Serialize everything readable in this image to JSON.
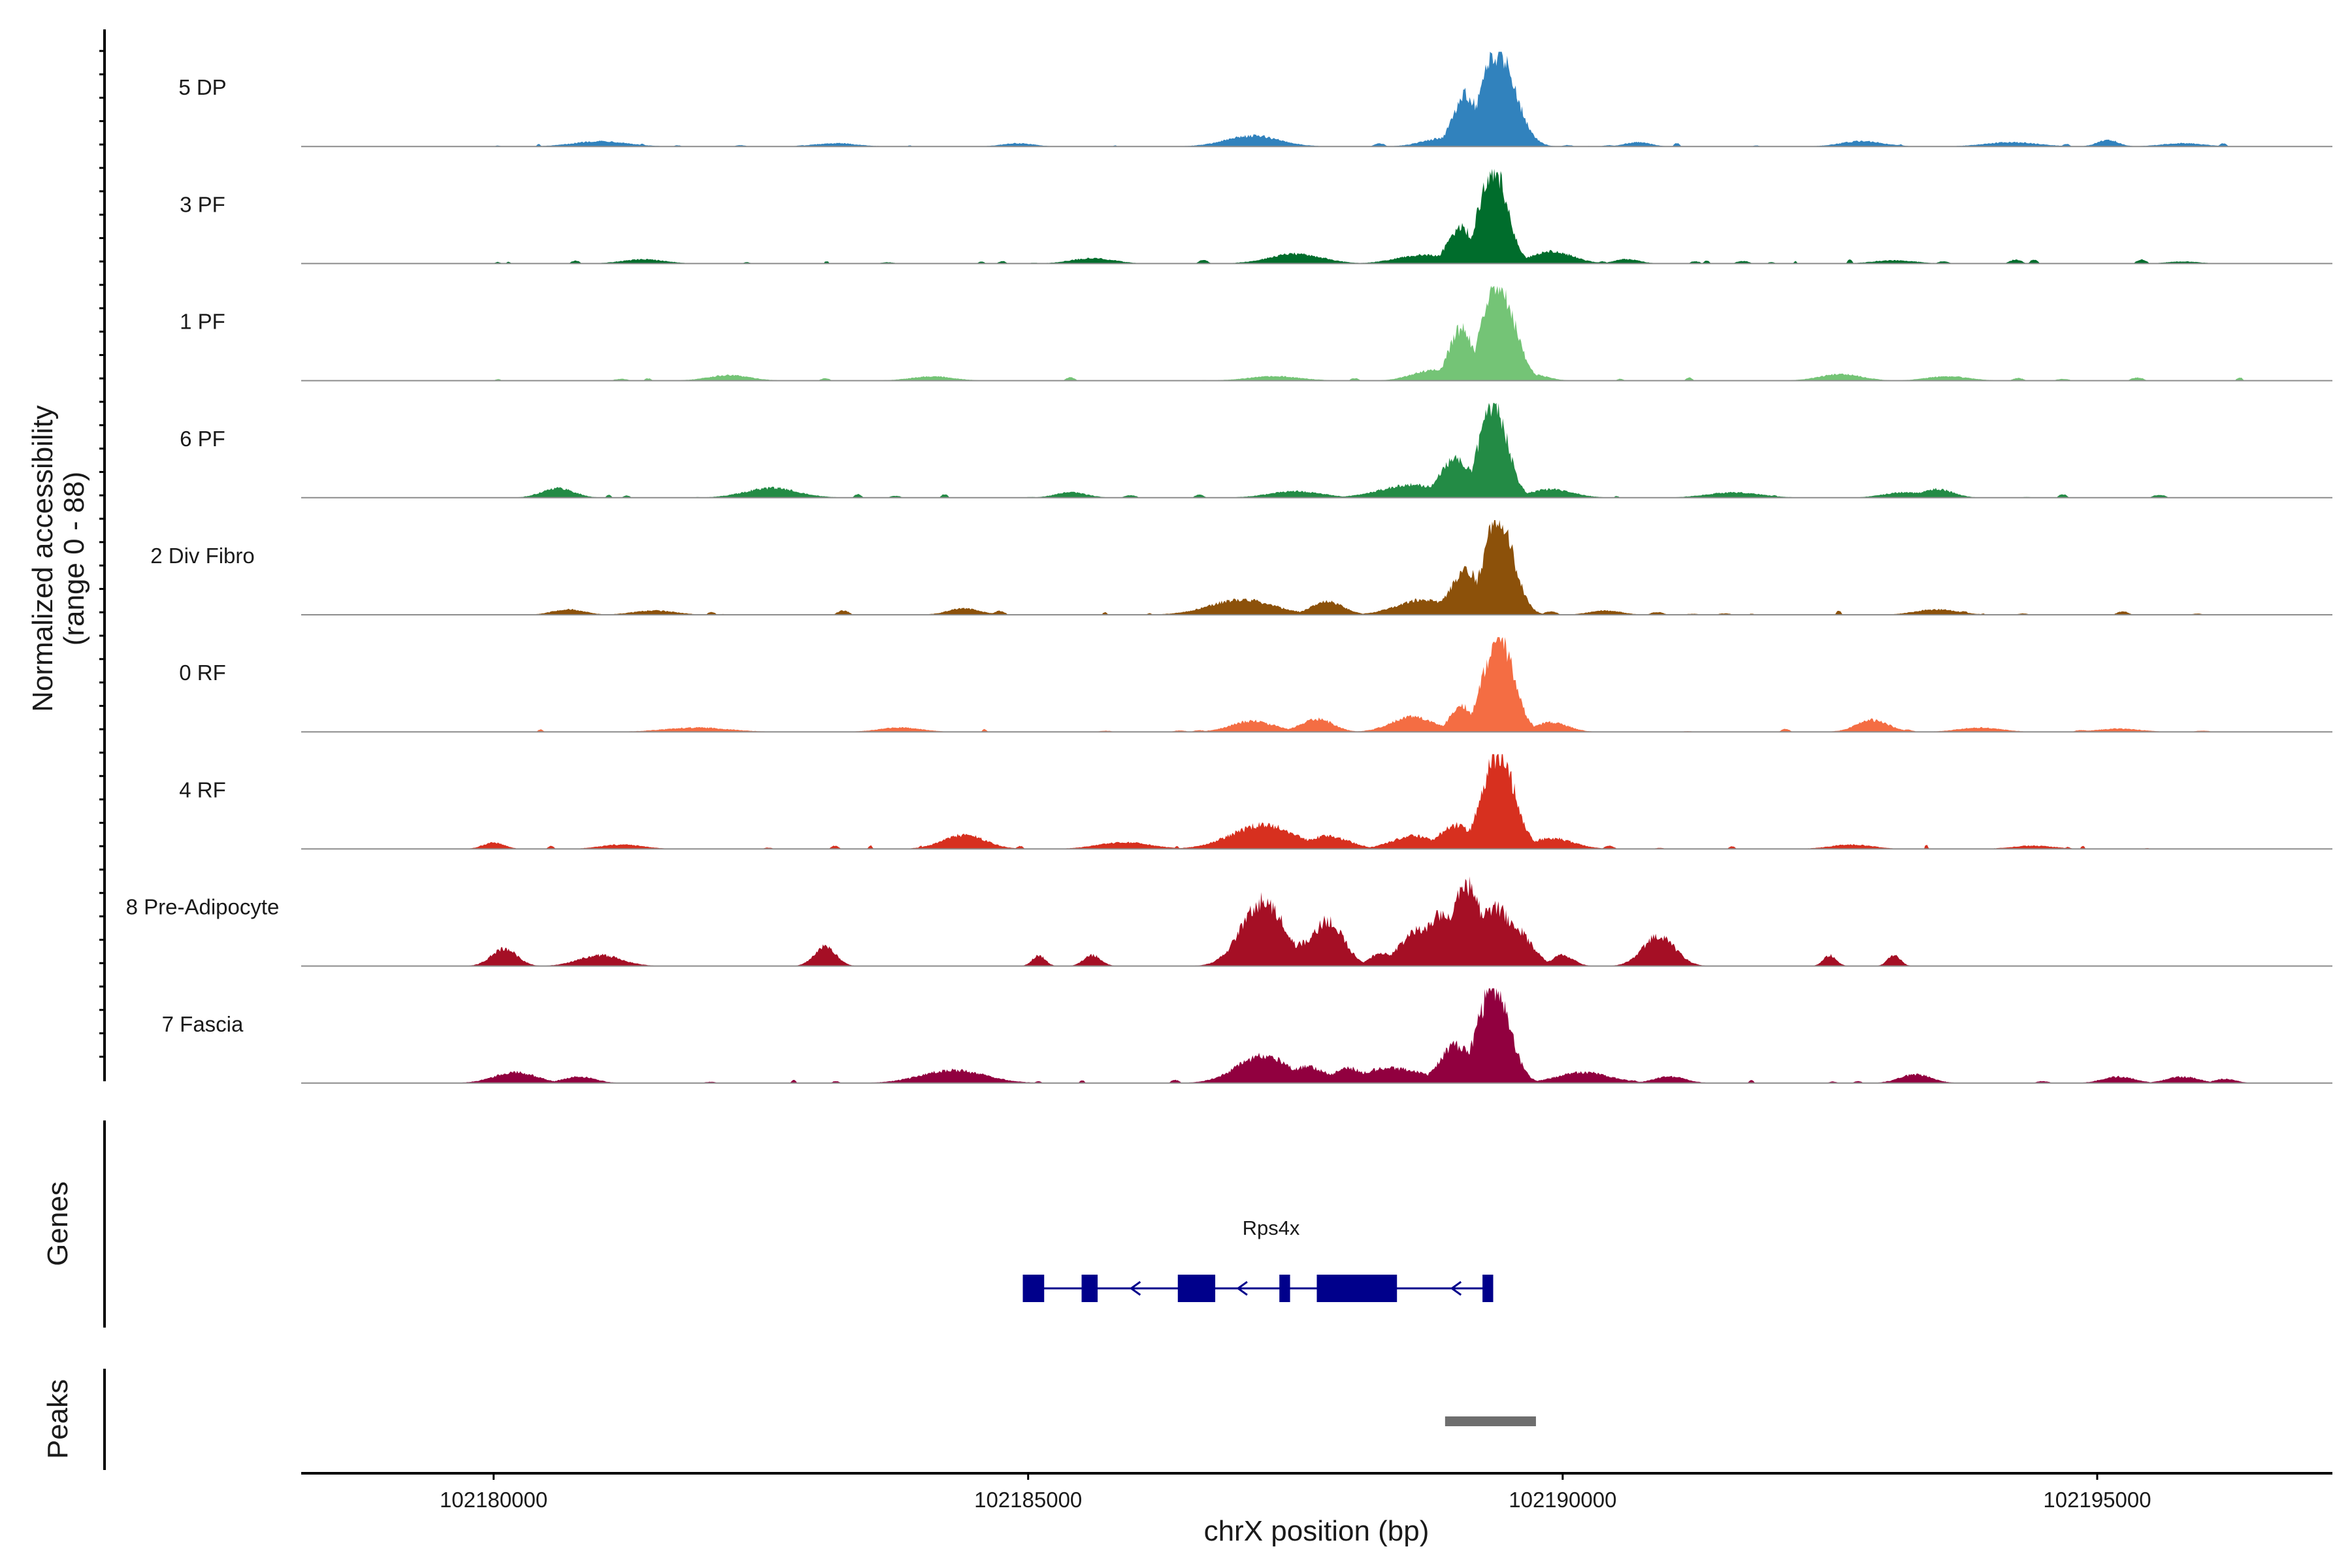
{
  "chart_data": {
    "type": "area",
    "region": {
      "chromosome": "chrX",
      "start": 102178200,
      "end": 102197200
    },
    "y_axis_title_line1": "Normalized accessibility",
    "y_axis_title_line2": "(range 0 - 88)",
    "y_range": [
      0,
      88
    ],
    "x_axis_title": "chrX position (bp)",
    "x_ticks": [
      102180000,
      102185000,
      102190000,
      102195000
    ],
    "x_tick_labels": [
      "102180000",
      "102185000",
      "102190000",
      "102195000"
    ],
    "panel_titles": {
      "genes": "Genes",
      "peaks": "Peaks"
    },
    "tracks": [
      {
        "name": "5 DP",
        "color": "#3182bd",
        "peaks": [
          [
            102189400,
            160,
            88
          ],
          [
            102189100,
            120,
            48
          ],
          [
            102188900,
            200,
            8
          ],
          [
            102187100,
            250,
            10
          ],
          [
            102184900,
            150,
            3
          ],
          [
            102183200,
            200,
            3
          ],
          [
            102181000,
            250,
            5
          ],
          [
            102180900,
            150,
            4
          ],
          [
            102192800,
            200,
            5
          ],
          [
            102194200,
            250,
            4
          ],
          [
            102195100,
            100,
            6
          ],
          [
            102195800,
            200,
            3
          ],
          [
            102190700,
            120,
            4
          ]
        ],
        "noise": {
          "from": 102180000,
          "to": 102196400,
          "max": 3,
          "seed": 11
        }
      },
      {
        "name": "3 PF",
        "color": "#006d2c",
        "peaks": [
          [
            102189350,
            130,
            88
          ],
          [
            102189050,
            120,
            33
          ],
          [
            102188700,
            250,
            8
          ],
          [
            102189900,
            200,
            11
          ],
          [
            102187500,
            250,
            9
          ],
          [
            102185600,
            200,
            5
          ],
          [
            102181400,
            200,
            4
          ],
          [
            102190600,
            120,
            4
          ],
          [
            102193100,
            200,
            3
          ],
          [
            102195800,
            150,
            2
          ]
        ],
        "noise": {
          "from": 102180000,
          "to": 102196200,
          "max": 4,
          "seed": 12
        }
      },
      {
        "name": "1 PF",
        "color": "#74c476",
        "peaks": [
          [
            102189400,
            150,
            88
          ],
          [
            102189050,
            110,
            49
          ],
          [
            102188800,
            200,
            10
          ],
          [
            102189700,
            150,
            6
          ],
          [
            102184100,
            200,
            4
          ],
          [
            102182200,
            200,
            5
          ],
          [
            102187300,
            250,
            4
          ],
          [
            102192600,
            200,
            6
          ],
          [
            102193600,
            200,
            4
          ]
        ],
        "noise": {
          "from": 102180000,
          "to": 102196400,
          "max": 3,
          "seed": 13
        }
      },
      {
        "name": "6 PF",
        "color": "#238b45",
        "peaks": [
          [
            102189350,
            130,
            88
          ],
          [
            102189000,
            150,
            36
          ],
          [
            102188600,
            300,
            12
          ],
          [
            102189900,
            200,
            8
          ],
          [
            102180600,
            150,
            9
          ],
          [
            102182600,
            250,
            9
          ],
          [
            102185400,
            150,
            5
          ],
          [
            102187500,
            250,
            6
          ],
          [
            102191600,
            250,
            5
          ],
          [
            102193200,
            200,
            5
          ],
          [
            102193500,
            150,
            8
          ]
        ],
        "noise": {
          "from": 102180600,
          "to": 102195600,
          "max": 4,
          "seed": 14
        }
      },
      {
        "name": "2 Div Fibro",
        "color": "#8c510a",
        "peaks": [
          [
            102189400,
            140,
            88
          ],
          [
            102189100,
            150,
            40
          ],
          [
            102188700,
            250,
            14
          ],
          [
            102187000,
            300,
            14
          ],
          [
            102187800,
            150,
            12
          ],
          [
            102184400,
            150,
            6
          ],
          [
            102181500,
            200,
            4
          ],
          [
            102190400,
            150,
            4
          ],
          [
            102193500,
            200,
            5
          ],
          [
            102180700,
            150,
            5
          ]
        ],
        "noise": {
          "from": 102180700,
          "to": 102196300,
          "max": 4,
          "seed": 15
        }
      },
      {
        "name": "0 RF",
        "color": "#f46d43",
        "peaks": [
          [
            102189400,
            140,
            88
          ],
          [
            102189050,
            100,
            25
          ],
          [
            102188600,
            200,
            14
          ],
          [
            102187100,
            200,
            10
          ],
          [
            102187700,
            150,
            12
          ],
          [
            102189900,
            150,
            9
          ],
          [
            102192900,
            150,
            11
          ],
          [
            102181900,
            300,
            4
          ],
          [
            102183800,
            200,
            4
          ],
          [
            102193900,
            200,
            4
          ],
          [
            102195200,
            200,
            3
          ]
        ],
        "noise": {
          "from": 102180400,
          "to": 102196300,
          "max": 3,
          "seed": 16
        }
      },
      {
        "name": "4 RF",
        "color": "#d7301f",
        "peaks": [
          [
            102189400,
            150,
            88
          ],
          [
            102189000,
            150,
            22
          ],
          [
            102188600,
            200,
            12
          ],
          [
            102187200,
            300,
            22
          ],
          [
            102187800,
            200,
            12
          ],
          [
            102184400,
            200,
            13
          ],
          [
            102189900,
            200,
            10
          ],
          [
            102185900,
            250,
            6
          ],
          [
            102180000,
            100,
            6
          ],
          [
            102181200,
            200,
            4
          ],
          [
            102192700,
            200,
            4
          ],
          [
            102194400,
            200,
            3
          ]
        ],
        "noise": {
          "from": 102180000,
          "to": 102196400,
          "max": 4,
          "seed": 17
        }
      },
      {
        "name": "8 Pre-Adipocyte",
        "color": "#a50f25",
        "peaks": [
          [
            102180100,
            120,
            16
          ],
          [
            102181000,
            200,
            10
          ],
          [
            102183100,
            100,
            18
          ],
          [
            102185100,
            60,
            10
          ],
          [
            102185600,
            80,
            10
          ],
          [
            102187200,
            200,
            60
          ],
          [
            102187600,
            150,
            22
          ],
          [
            102187800,
            150,
            42
          ],
          [
            102188300,
            100,
            12
          ],
          [
            102188700,
            200,
            35
          ],
          [
            102188900,
            200,
            50
          ],
          [
            102189100,
            150,
            75
          ],
          [
            102189350,
            200,
            55
          ],
          [
            102189550,
            150,
            35
          ],
          [
            102190000,
            100,
            10
          ],
          [
            102190900,
            150,
            28
          ],
          [
            102192500,
            60,
            10
          ],
          [
            102193100,
            60,
            10
          ]
        ],
        "noise": {
          "from": 102180000,
          "to": 102180000,
          "max": 0,
          "seed": 18
        }
      },
      {
        "name": "7 Fascia",
        "color": "#91003f",
        "peaks": [
          [
            102189350,
            150,
            88
          ],
          [
            102189000,
            150,
            35
          ],
          [
            102188400,
            300,
            14
          ],
          [
            102187200,
            250,
            25
          ],
          [
            102187600,
            200,
            15
          ],
          [
            102188000,
            150,
            14
          ],
          [
            102184300,
            300,
            12
          ],
          [
            102180200,
            200,
            10
          ],
          [
            102180800,
            150,
            6
          ],
          [
            102190200,
            250,
            10
          ],
          [
            102191000,
            150,
            6
          ],
          [
            102193300,
            150,
            8
          ],
          [
            102195200,
            150,
            6
          ],
          [
            102195800,
            150,
            6
          ],
          [
            102196200,
            100,
            4
          ]
        ],
        "noise": {
          "from": 102180000,
          "to": 102196300,
          "max": 3,
          "seed": 19
        }
      }
    ],
    "genes": [
      {
        "name": "Rps4x",
        "strand": "-",
        "color": "#00008b",
        "start": 102184950,
        "end": 102189350,
        "exons": [
          [
            102184950,
            102185150
          ],
          [
            102185500,
            102185650
          ],
          [
            102186400,
            102186750
          ],
          [
            102187350,
            102187450
          ],
          [
            102187700,
            102188450
          ],
          [
            102189250,
            102189350
          ]
        ],
        "arrows": [
          102186000,
          102187000,
          102189000
        ]
      }
    ],
    "peaks": [
      {
        "start": 102188900,
        "end": 102189750,
        "color": "#6e6e6e"
      }
    ]
  }
}
